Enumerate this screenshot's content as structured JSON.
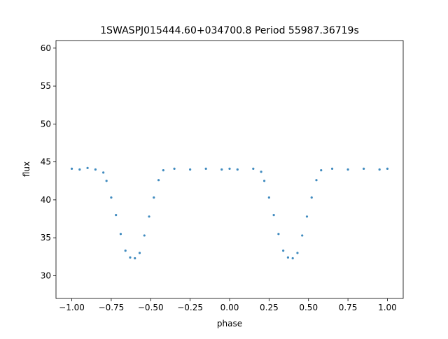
{
  "chart_data": {
    "type": "scatter",
    "title": "1SWASPJ015444.60+034700.8 Period 55987.36719s",
    "xlabel": "phase",
    "ylabel": "flux",
    "xlim": [
      -1.1,
      1.1
    ],
    "ylim": [
      27.0,
      61.0
    ],
    "x_ticks": [
      -1.0,
      -0.75,
      -0.5,
      -0.25,
      0.0,
      0.25,
      0.5,
      0.75,
      1.0
    ],
    "x_tick_labels": [
      "−1.00",
      "−0.75",
      "−0.50",
      "−0.25",
      "0.00",
      "0.25",
      "0.50",
      "0.75",
      "1.00"
    ],
    "y_ticks": [
      30,
      35,
      40,
      45,
      50,
      55,
      60
    ],
    "y_tick_labels": [
      "30",
      "35",
      "40",
      "45",
      "50",
      "55",
      "60"
    ],
    "grid": false,
    "legend": "none",
    "marker_color": "#1f77b4",
    "series": [
      {
        "points": [
          [
            -1.0,
            44.1
          ],
          [
            -0.95,
            44.0
          ],
          [
            -0.9,
            44.2
          ],
          [
            -0.85,
            44.0
          ],
          [
            -0.8,
            43.6
          ],
          [
            -0.78,
            42.5
          ],
          [
            -0.75,
            40.3
          ],
          [
            -0.72,
            38.0
          ],
          [
            -0.69,
            35.5
          ],
          [
            -0.66,
            33.3
          ],
          [
            -0.63,
            32.4
          ],
          [
            -0.6,
            32.3
          ],
          [
            -0.57,
            33.0
          ],
          [
            -0.54,
            35.3
          ],
          [
            -0.51,
            37.8
          ],
          [
            -0.48,
            40.3
          ],
          [
            -0.45,
            42.6
          ],
          [
            -0.42,
            43.9
          ],
          [
            -0.35,
            44.1
          ],
          [
            -0.25,
            44.0
          ],
          [
            -0.15,
            44.1
          ],
          [
            -0.05,
            44.0
          ],
          [
            0.0,
            44.1
          ],
          [
            0.05,
            44.0
          ],
          [
            0.15,
            44.1
          ],
          [
            0.2,
            43.7
          ],
          [
            0.22,
            42.5
          ],
          [
            0.25,
            40.3
          ],
          [
            0.28,
            38.0
          ],
          [
            0.31,
            35.5
          ],
          [
            0.34,
            33.3
          ],
          [
            0.37,
            32.4
          ],
          [
            0.4,
            32.3
          ],
          [
            0.43,
            33.0
          ],
          [
            0.46,
            35.3
          ],
          [
            0.49,
            37.8
          ],
          [
            0.52,
            40.3
          ],
          [
            0.55,
            42.6
          ],
          [
            0.58,
            43.9
          ],
          [
            0.65,
            44.1
          ],
          [
            0.75,
            44.0
          ],
          [
            0.85,
            44.1
          ],
          [
            0.95,
            44.0
          ],
          [
            1.0,
            44.1
          ]
        ]
      }
    ]
  }
}
